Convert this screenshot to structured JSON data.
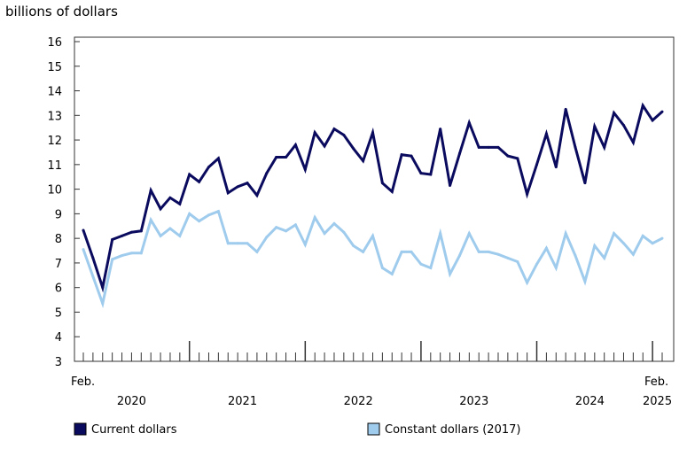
{
  "chart_data": {
    "type": "line",
    "ylabel": "billions of dollars",
    "ylim": [
      3,
      16
    ],
    "yticks": [
      3,
      4,
      5,
      6,
      7,
      8,
      9,
      10,
      11,
      12,
      13,
      14,
      15,
      16
    ],
    "x_start": "Feb. 2020",
    "x_end": "Feb. 2025",
    "start_label": "Feb.",
    "end_label": "Feb.",
    "year_labels": [
      "2020",
      "2021",
      "2022",
      "2023",
      "2024",
      "2025"
    ],
    "colors": {
      "current": "#0a0a5e",
      "constant": "#9fcbed"
    },
    "series": [
      {
        "name": "Current dollars",
        "key": "current",
        "values": [
          8.33,
          7.2,
          6.0,
          7.95,
          8.1,
          8.25,
          8.3,
          9.95,
          9.2,
          9.65,
          9.4,
          10.6,
          10.3,
          10.9,
          11.25,
          9.85,
          10.1,
          10.25,
          9.75,
          10.65,
          11.3,
          11.3,
          11.8,
          10.8,
          12.3,
          11.75,
          12.45,
          12.2,
          11.65,
          11.15,
          12.3,
          10.25,
          9.9,
          11.4,
          11.35,
          10.65,
          10.6,
          12.45,
          10.15,
          11.45,
          12.7,
          11.7,
          11.7,
          11.7,
          11.35,
          11.25,
          9.8,
          11.0,
          12.25,
          10.9,
          13.25,
          11.7,
          10.25,
          12.55,
          11.7,
          13.1,
          12.6,
          11.9,
          13.4,
          12.8,
          13.15
        ]
      },
      {
        "name": "Constant dollars (2017)",
        "key": "constant",
        "values": [
          7.55,
          6.45,
          5.35,
          7.15,
          7.3,
          7.4,
          7.4,
          8.75,
          8.1,
          8.4,
          8.1,
          9.0,
          8.7,
          8.95,
          9.1,
          7.8,
          7.8,
          7.8,
          7.45,
          8.05,
          8.45,
          8.3,
          8.55,
          7.75,
          8.85,
          8.2,
          8.6,
          8.25,
          7.7,
          7.45,
          8.1,
          6.8,
          6.55,
          7.45,
          7.45,
          6.95,
          6.8,
          8.2,
          6.55,
          7.3,
          8.2,
          7.45,
          7.45,
          7.35,
          7.2,
          7.05,
          6.2,
          6.95,
          7.6,
          6.8,
          8.2,
          7.3,
          6.25,
          7.7,
          7.2,
          8.2,
          7.8,
          7.35,
          8.1,
          7.8,
          8.0
        ]
      }
    ],
    "legend_position": "bottom"
  }
}
